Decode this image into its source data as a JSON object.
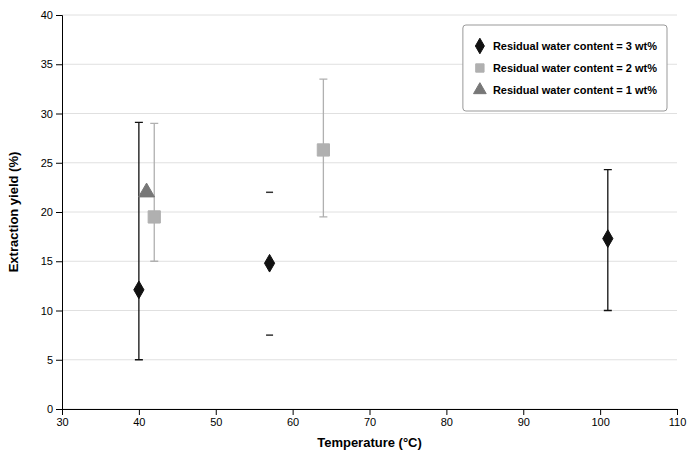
{
  "chart_data": {
    "type": "scatter",
    "xlabel": "Temperature (°C)",
    "ylabel": "Extraction yield (%)",
    "xlim": [
      30,
      110
    ],
    "ylim": [
      0,
      40
    ],
    "xticks": [
      30,
      40,
      50,
      60,
      70,
      80,
      90,
      100,
      110
    ],
    "yticks": [
      0,
      5,
      10,
      15,
      20,
      25,
      30,
      35,
      40
    ],
    "grid": "y",
    "legend": "upper right",
    "series": [
      {
        "name": "Residual water content = 3 wt%",
        "color": "#111111",
        "marker": "diamond",
        "x": [
          40,
          57,
          101
        ],
        "values": [
          12.1,
          14.8,
          17.3
        ],
        "error_lower": [
          7.1,
          0,
          7.3
        ],
        "error_upper": [
          17.0,
          0,
          7.0
        ]
      },
      {
        "name": "Residual water content = 2 wt%",
        "color": "#b0b0b0",
        "marker": "square",
        "x": [
          42,
          64
        ],
        "values": [
          19.5,
          26.3
        ],
        "error_lower": [
          4.5,
          6.8
        ],
        "error_upper": [
          9.5,
          7.2
        ]
      },
      {
        "name": "Residual water content = 1 wt%",
        "color": "#777777",
        "marker": "triangle",
        "x": [
          41
        ],
        "values": [
          22.0
        ],
        "error_lower": [
          0
        ],
        "error_upper": [
          0
        ]
      }
    ],
    "standalone_ticks": {
      "color": "#333333",
      "x": [
        57,
        57
      ],
      "values": [
        22.0,
        7.5
      ]
    }
  }
}
